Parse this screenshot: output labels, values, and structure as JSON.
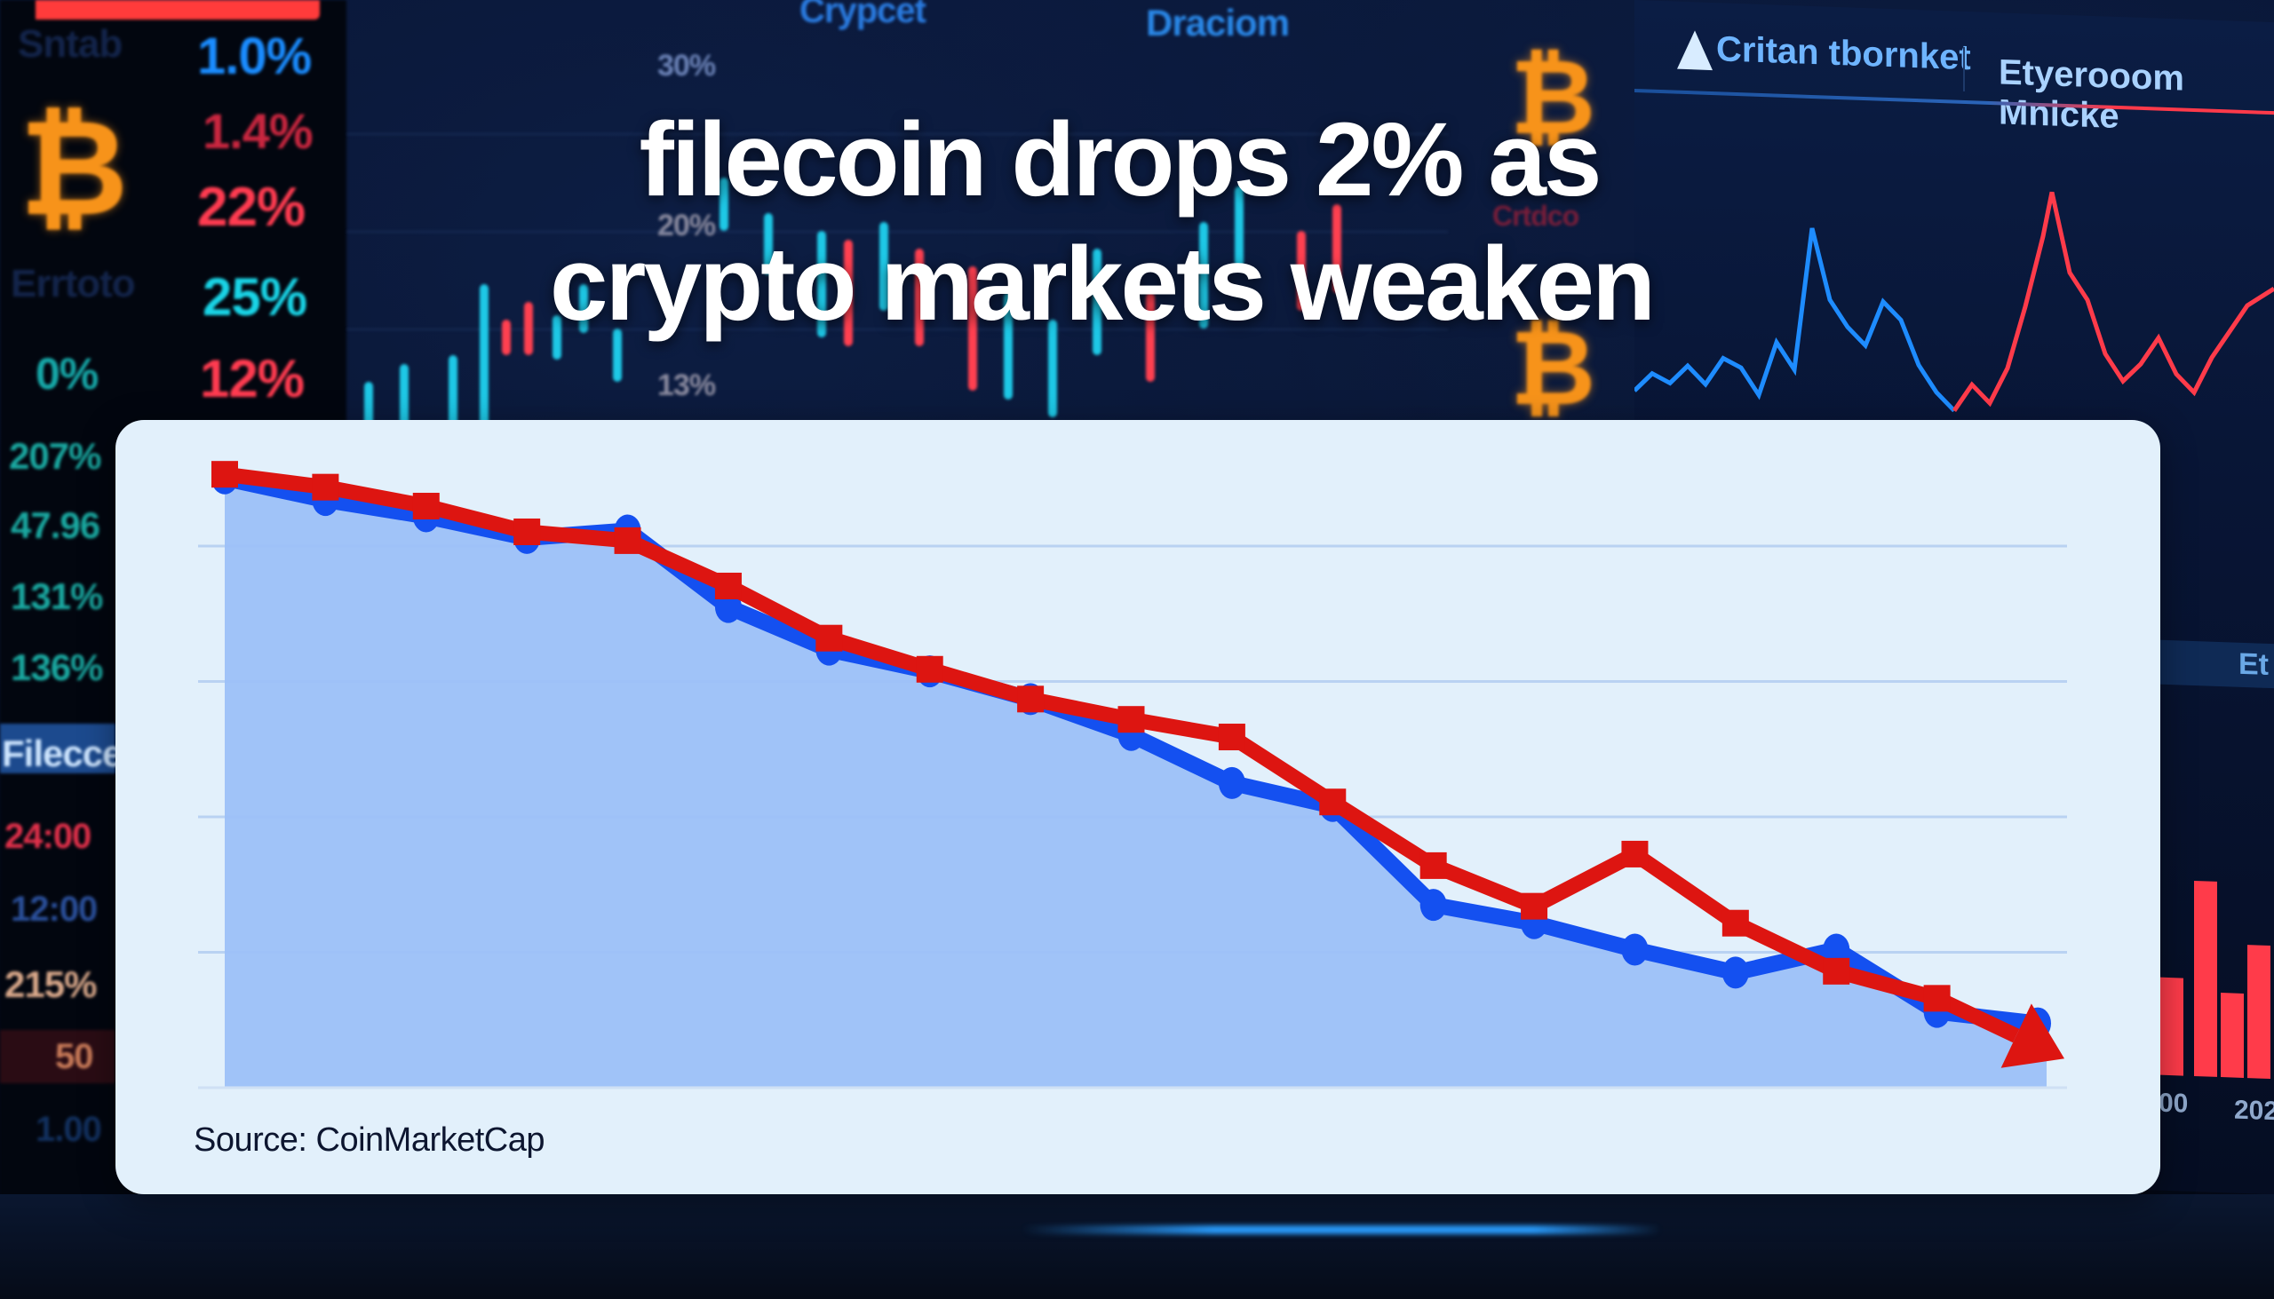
{
  "headline": {
    "line1": "filecoin drops 2% as",
    "line2": "crypto markets weaken"
  },
  "background": {
    "left_panel": {
      "labels": [
        "Sntab",
        "Errtoto"
      ],
      "values": [
        "1.0%",
        "1.4%",
        "22%",
        "25%",
        "0%",
        "12%",
        "207%",
        "47.96",
        "131%",
        "136%",
        "24:00",
        "12:00",
        "215%",
        "50",
        "1.00"
      ],
      "highlight_label": "Filecce"
    },
    "mid_panel": {
      "top_labels": [
        "Crypcet",
        "Draciom"
      ],
      "axis_labels": [
        "30%",
        "20%",
        "13%"
      ],
      "side_label": "Crtdco"
    },
    "right_panel": {
      "tabs": [
        "Critan tbornket",
        "Etyerooom Mnicke"
      ],
      "side_label": "Et",
      "axis_labels": [
        "00",
        "202"
      ]
    },
    "icons": [
      "bitcoin-icon",
      "bitcoin-icon",
      "bitcoin-icon"
    ]
  },
  "card": {
    "source": "Source: CoinMarketCap"
  },
  "colors": {
    "series_blue": "#1450f0",
    "series_red": "#dd1511",
    "area_fill": "#9cc0f8",
    "card_bg": "#e2f0fb",
    "headline": "#ffffff"
  },
  "chart_data": {
    "type": "line",
    "title": "filecoin drops 2% as crypto markets weaken",
    "xlabel": "",
    "ylabel": "",
    "x": [
      1,
      2,
      3,
      4,
      5,
      6,
      7,
      8,
      9,
      10,
      11,
      12,
      13,
      14,
      15,
      16,
      17,
      18,
      19
    ],
    "ylim": [
      0,
      100
    ],
    "grid": true,
    "gridlines": [
      20,
      40,
      60,
      80
    ],
    "legend": null,
    "series": [
      {
        "name": "blue (area)",
        "color": "#1450f0",
        "marker": "circle",
        "filled_area": true,
        "values": [
          90.0,
          86.8,
          84.4,
          81.2,
          82.3,
          71.0,
          64.7,
          61.5,
          57.4,
          52.1,
          45.0,
          41.6,
          27.0,
          24.3,
          20.4,
          17.0,
          20.4,
          11.2,
          9.5
        ]
      },
      {
        "name": "red (trend arrow)",
        "color": "#dd1511",
        "marker": "square",
        "end_arrow": true,
        "values": [
          90.6,
          88.7,
          85.9,
          82.1,
          80.8,
          74.1,
          66.4,
          61.8,
          57.4,
          54.4,
          51.8,
          42.2,
          32.8,
          26.8,
          34.5,
          24.3,
          17.2,
          13.2,
          4.3
        ]
      }
    ],
    "annotations": [
      "Source: CoinMarketCap"
    ]
  }
}
